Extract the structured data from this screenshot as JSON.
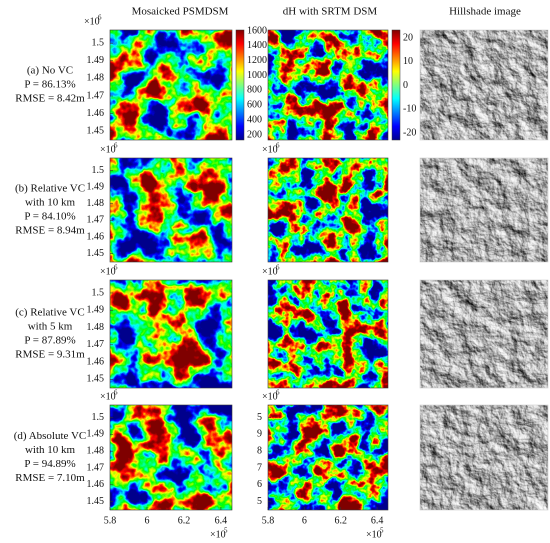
{
  "headers": [
    "Mosaicked PSMDSM",
    "dH with SRTM DSM",
    "Hillshade image"
  ],
  "rows": [
    {
      "label": [
        "(a) No VC",
        "P = 86.13%",
        "RMSE = 8.42m"
      ]
    },
    {
      "label": [
        "(b) Relative VC",
        "with 10 km",
        "P = 84.10%",
        "RMSE = 8.94m"
      ]
    },
    {
      "label": [
        "(c) Relative VC",
        "with 5 km",
        "P = 87.89%",
        "RMSE = 9.31m"
      ]
    },
    {
      "label": [
        "(d) Absolute VC",
        "with 10 km",
        "P = 94.89%",
        "RMSE = 7.10m"
      ]
    }
  ],
  "y_axis": {
    "base": "×10",
    "power": "6",
    "ticks": [
      "1.5",
      "1.49",
      "1.48",
      "1.47",
      "1.46",
      "1.45"
    ]
  },
  "dh_row_d_ticks": [
    "5",
    "9",
    "8",
    "7",
    "6",
    "5"
  ],
  "x_axis": {
    "base": "×10",
    "power": "5",
    "ticks": [
      "5.8",
      "6",
      "6.2",
      "6.4"
    ]
  },
  "colorbar_height": [
    "1600",
    "1400",
    "1200",
    "1000",
    "800",
    "600",
    "400",
    "200"
  ],
  "colorbar_dh": [
    "20",
    "10",
    "0",
    "-10",
    "-20"
  ]
}
